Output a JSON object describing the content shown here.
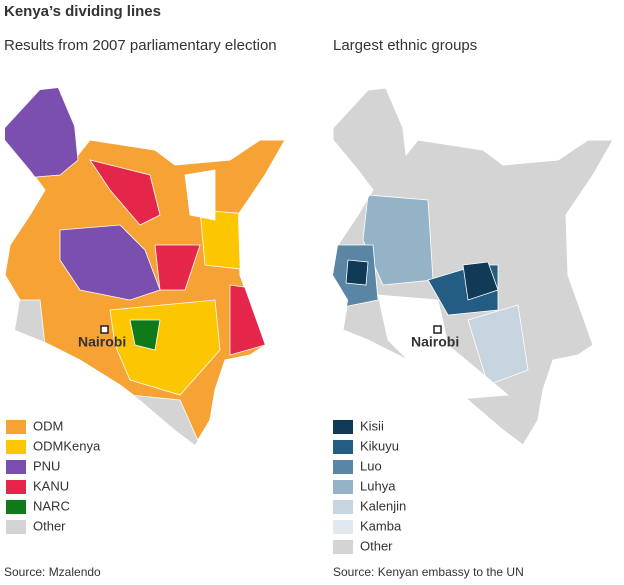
{
  "title": "Kenya’s dividing lines",
  "maps": [
    {
      "subtitle": "Results from 2007 parliamentary election",
      "city": "Nairobi",
      "legend": [
        {
          "label": "ODM",
          "color": "#f7a234"
        },
        {
          "label": "ODMKenya",
          "color": "#fcc600"
        },
        {
          "label": "PNU",
          "color": "#7a4fb0"
        },
        {
          "label": "KANU",
          "color": "#e4264a"
        },
        {
          "label": "NARC",
          "color": "#0f7a1a"
        },
        {
          "label": "Other",
          "color": "#d4d4d4"
        }
      ],
      "source": "Source: Mzalendo"
    },
    {
      "subtitle": "Largest ethnic groups",
      "city": "Nairobi",
      "legend": [
        {
          "label": "Kisii",
          "color": "#103a55"
        },
        {
          "label": "Kikuyu",
          "color": "#245d83"
        },
        {
          "label": "Luo",
          "color": "#5a85a4"
        },
        {
          "label": "Luhya",
          "color": "#95b3c6"
        },
        {
          "label": "Kalenjin",
          "color": "#c6d5e0"
        },
        {
          "label": "Kamba",
          "color": "#dfe8ef"
        },
        {
          "label": "Other",
          "color": "#d4d4d4"
        }
      ],
      "source": "Source: Kenyan embassy to the UN"
    }
  ]
}
